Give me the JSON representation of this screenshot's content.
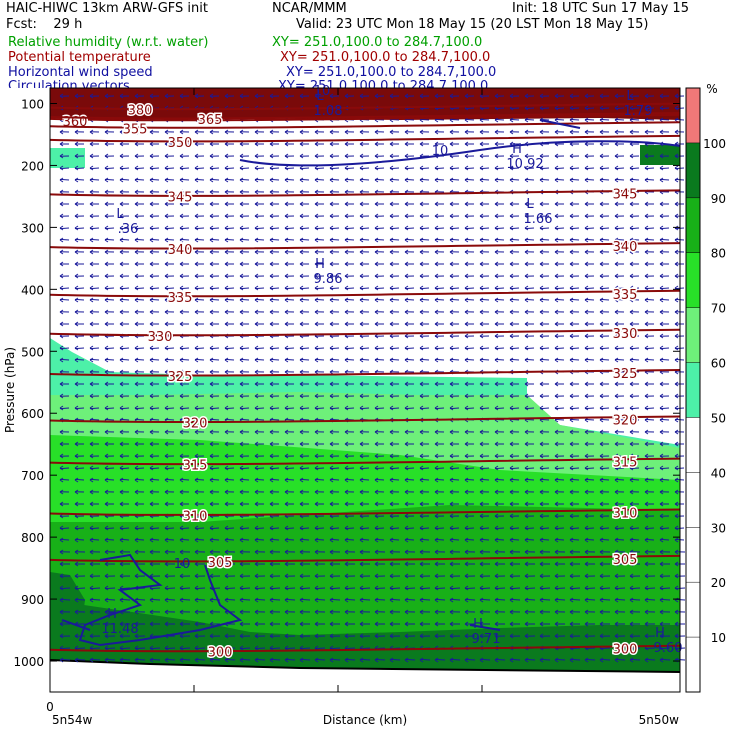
{
  "header": {
    "model": "HAIC-HIWC 13km ARW-GFS init",
    "source": "NCAR/MMM",
    "init": "Init: 18 UTC Sun 17 May 15",
    "fcst": "Fcst:    29 h",
    "valid": "Valid: 23 UTC Mon 18 May 15 (20 LST Mon 18 May 15)"
  },
  "fields": [
    {
      "label": "Relative humidity (w.r.t. water)",
      "xy": "XY= 251.0,100.0 to 284.7,100.0",
      "color": "#00a000"
    },
    {
      "label": "Potential temperature",
      "xy": "XY= 251.0,100.0 to 284.7,100.0",
      "color": "#a00000"
    },
    {
      "label": "Horizontal wind speed",
      "xy": "XY= 251.0,100.0 to 284.7,100.0",
      "color": "#1010a0"
    },
    {
      "label": "Circulation vectors",
      "xy": "XY= 251.0,100.0 to 284.7,100.0",
      "color": "#1010a0"
    }
  ],
  "chart_data": {
    "type": "heatmap",
    "title": "",
    "xlabel": "Distance (km)",
    "ylabel": "Pressure (hPa)",
    "x_ticks": [
      "0"
    ],
    "x_end_labels": [
      "5n54w",
      "5n50w"
    ],
    "y_ticks": [
      100,
      200,
      300,
      400,
      500,
      600,
      700,
      800,
      900,
      1000
    ],
    "ylim": [
      1050,
      75
    ],
    "y_reversed": true,
    "colorbar": {
      "unit": "%",
      "levels": [
        10,
        20,
        30,
        40,
        50,
        60,
        70,
        80,
        90,
        100
      ],
      "shaded_bands": [
        {
          "from": 50,
          "to": 60,
          "color": "#4df0a8"
        },
        {
          "from": 60,
          "to": 70,
          "color": "#6ef07a"
        },
        {
          "from": 70,
          "to": 80,
          "color": "#28e028"
        },
        {
          "from": 80,
          "to": 90,
          "color": "#18b018"
        },
        {
          "from": 90,
          "to": 100,
          "color": "#0a7a1e"
        },
        {
          "from": 100,
          "to": 110,
          "color": "#f07878"
        }
      ]
    },
    "theta_contours": [
      {
        "label": "380",
        "p": 110
      },
      {
        "label": "360",
        "p": 128
      },
      {
        "label": "365",
        "p": 125
      },
      {
        "label": "355",
        "p": 140
      },
      {
        "label": "350",
        "p": 162
      },
      {
        "label": "345",
        "p": 250
      },
      {
        "label": "340",
        "p": 335
      },
      {
        "label": "335",
        "p": 412
      },
      {
        "label": "330",
        "p": 475
      },
      {
        "label": "325",
        "p": 540
      },
      {
        "label": "320",
        "p": 615
      },
      {
        "label": "315",
        "p": 683
      },
      {
        "label": "310",
        "p": 765
      },
      {
        "label": "305",
        "p": 840
      },
      {
        "label": "300",
        "p": 985
      }
    ],
    "wind_speed_labels": [
      "10",
      "10",
      "10"
    ],
    "highs_lows": [
      {
        "marker": "L",
        "value": "1.66"
      },
      {
        "marker": "L",
        "value": ".36"
      },
      {
        "marker": "H",
        "value": "10.92"
      },
      {
        "marker": "H",
        "value": "9.86"
      },
      {
        "marker": "H",
        "value": "11.48"
      },
      {
        "marker": "H",
        "value": "9.71"
      },
      {
        "marker": "H",
        "value": "9.60"
      },
      {
        "marker": "L",
        "value": "1.79"
      },
      {
        "marker": "L",
        "value": "1.08"
      }
    ]
  }
}
